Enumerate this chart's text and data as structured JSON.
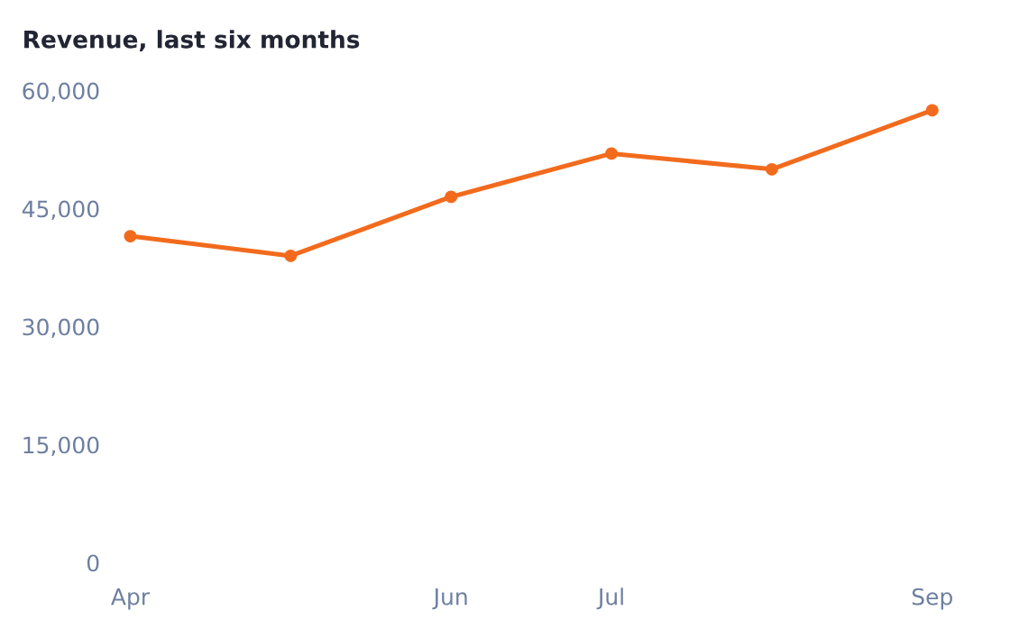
{
  "chart_data": {
    "type": "line",
    "title": "Revenue, last six months",
    "categories": [
      "Apr",
      null,
      "Jun",
      "Jul",
      null,
      "Sep"
    ],
    "series": [
      {
        "color": "#f26b1d",
        "values": [
          41500,
          39000,
          46500,
          52000,
          50000,
          57500
        ]
      }
    ],
    "ylim": [
      0,
      60000
    ],
    "yticks": [
      0,
      {
        "value": 15000,
        "label": "15,000"
      },
      {
        "value": 30000,
        "label": "30,000"
      },
      {
        "value": 45000,
        "label": "45,000"
      },
      {
        "value": 60000,
        "label": "60,000"
      }
    ],
    "marker": "circle",
    "line_style": "solid",
    "grid": false
  }
}
